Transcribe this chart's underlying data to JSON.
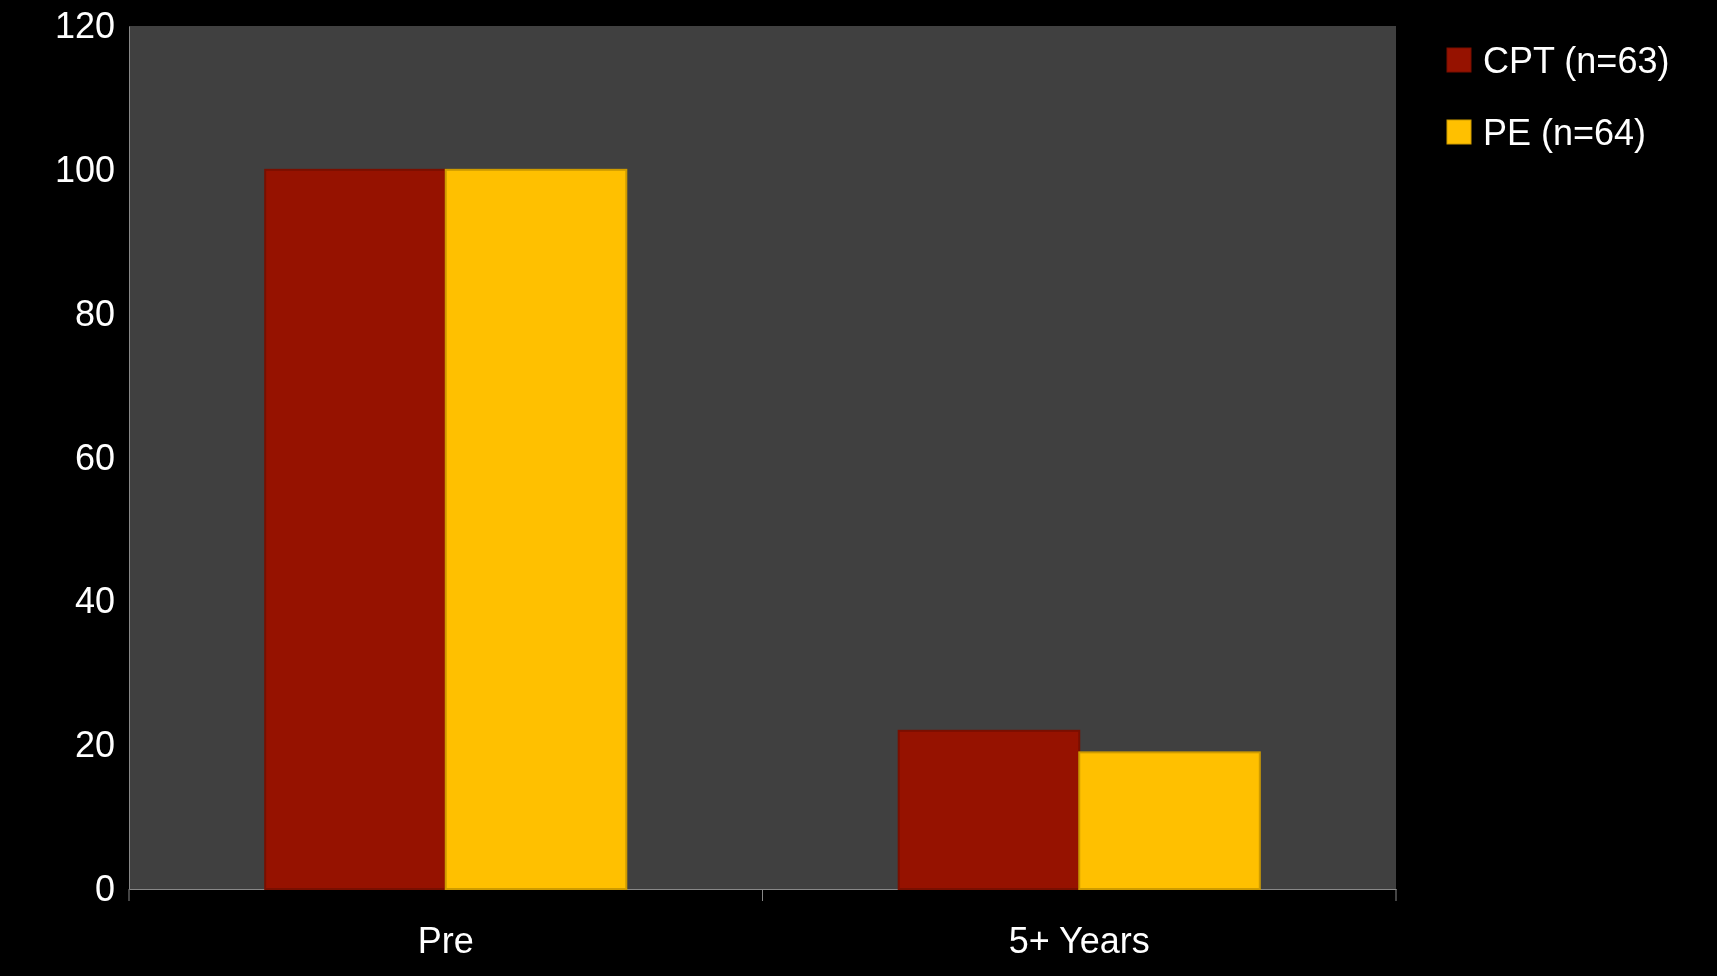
{
  "chart_data": {
    "type": "bar",
    "categories": [
      "Pre",
      "5+ Years"
    ],
    "series": [
      {
        "name": "CPT (n=63)",
        "color": "#961200",
        "values": [
          100,
          22
        ]
      },
      {
        "name": "PE (n=64)",
        "color": "#ffc000",
        "values": [
          100,
          19
        ]
      }
    ],
    "ylim": [
      0,
      120
    ],
    "yticks": [
      0,
      20,
      40,
      60,
      80,
      100,
      120
    ],
    "grid": false,
    "legend": "top right"
  }
}
